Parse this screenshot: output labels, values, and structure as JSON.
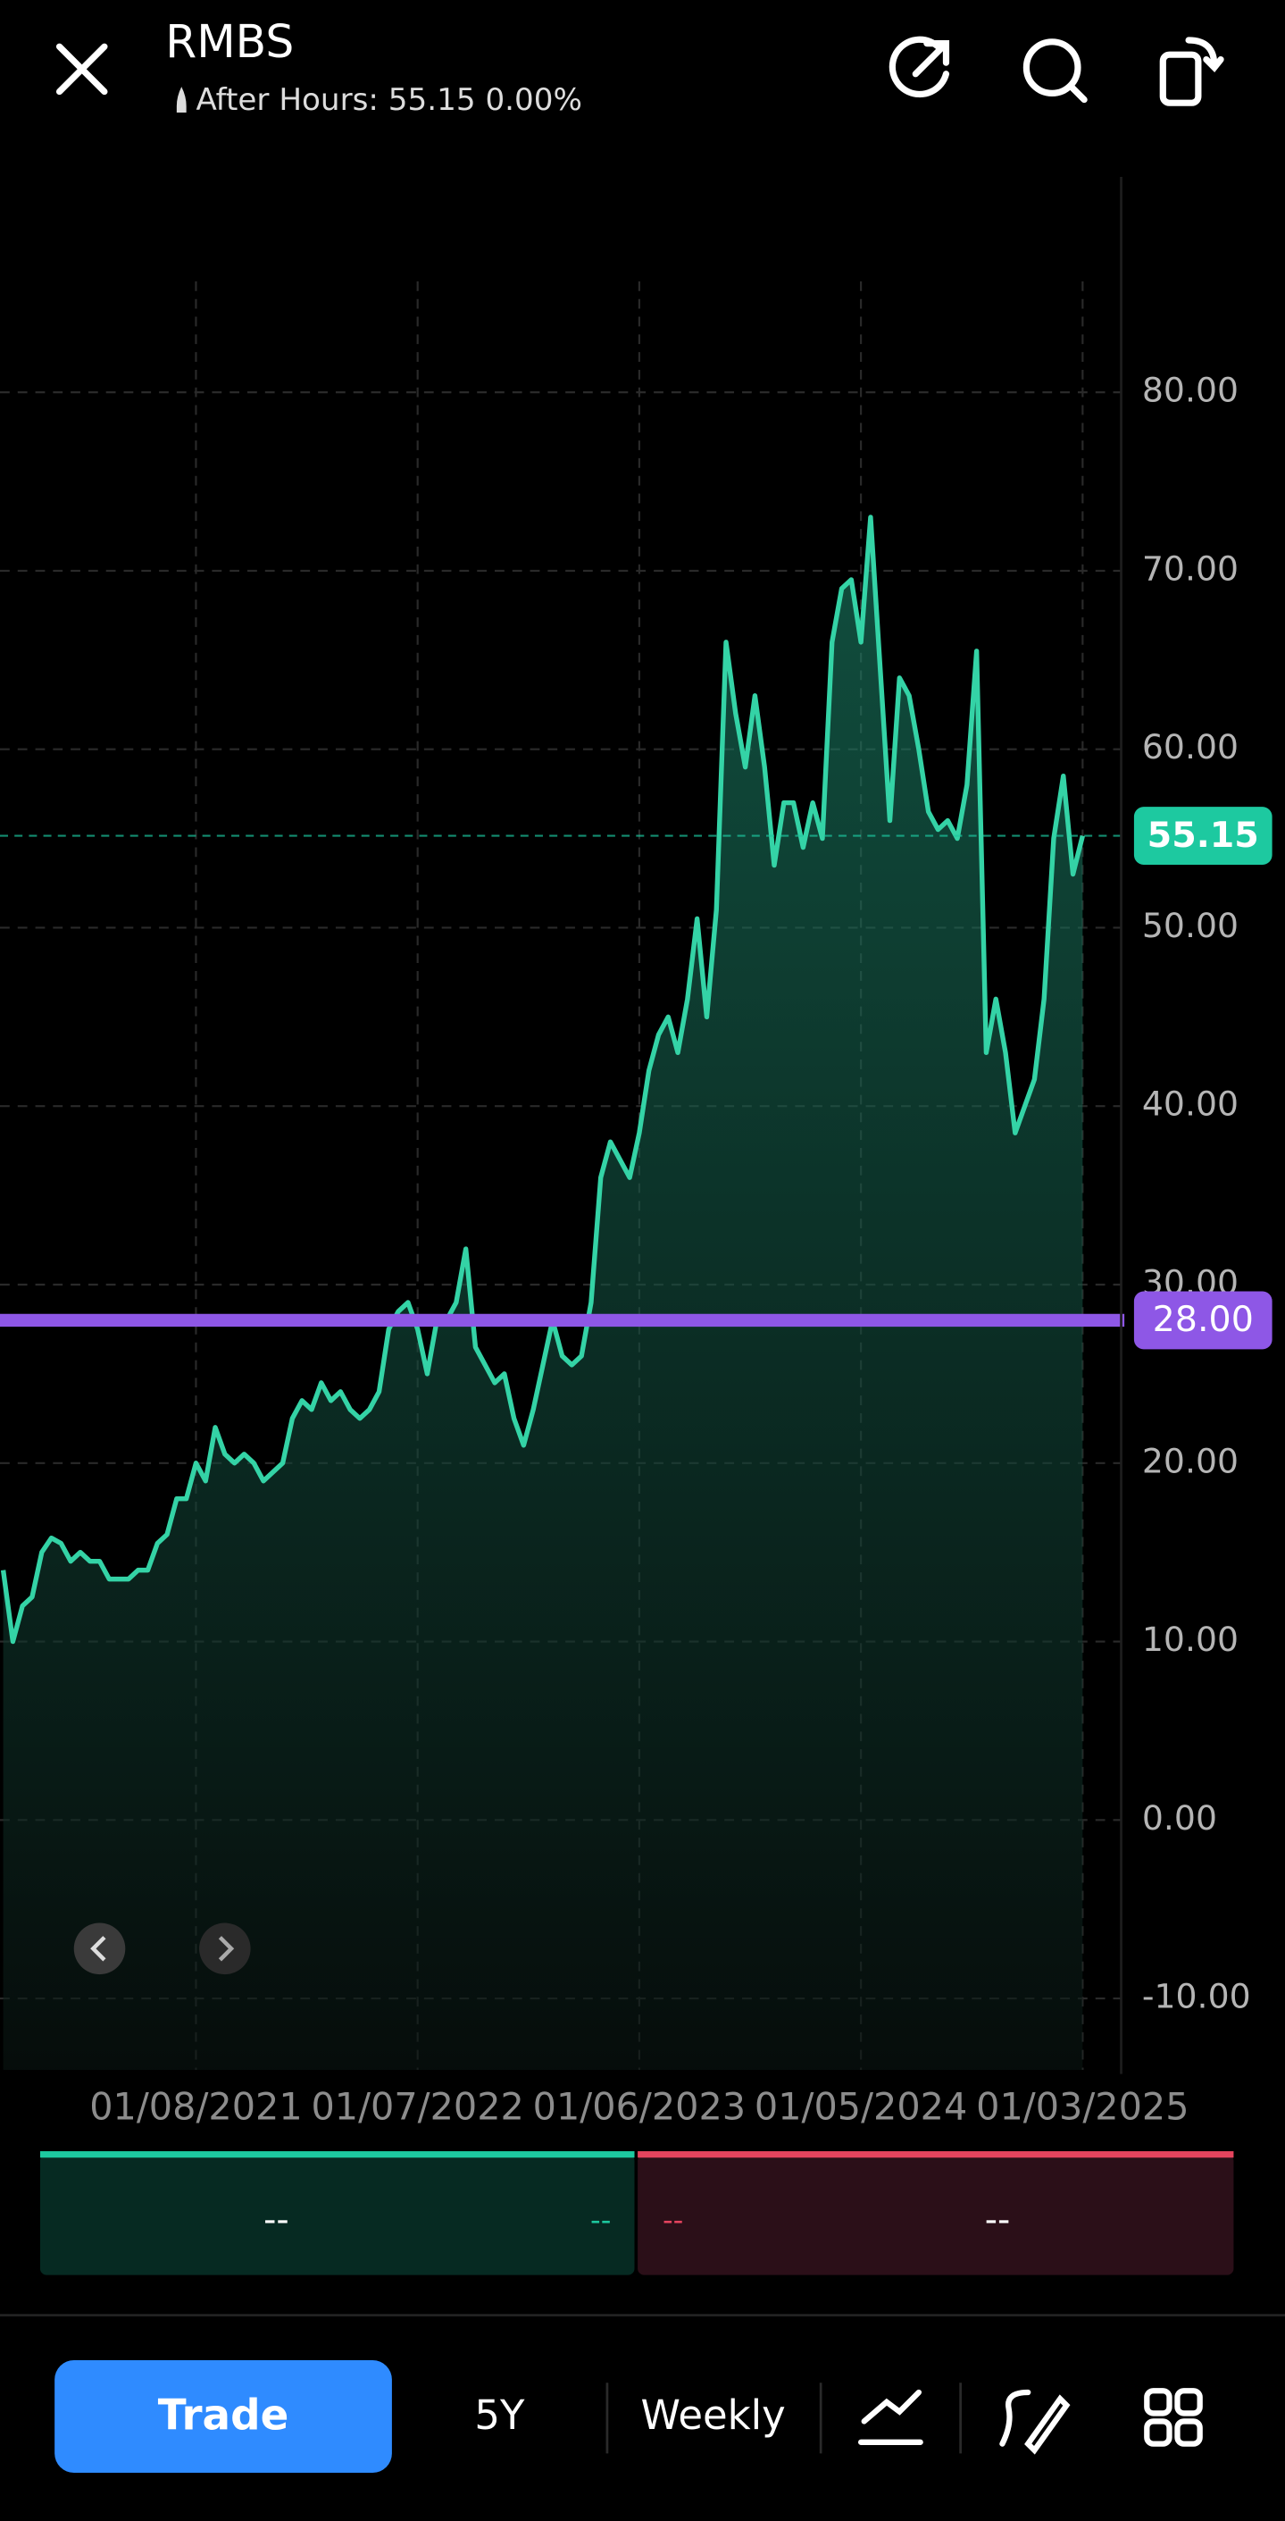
{
  "header": {
    "title": "RMBS",
    "subtitle": "After Hours: 55.15 0.00%"
  },
  "chart_data": {
    "type": "line",
    "values": [
      14,
      10,
      12,
      12.5,
      15,
      15.8,
      15.5,
      14.5,
      15,
      14.5,
      14.5,
      13.5,
      13.5,
      13.5,
      14,
      14,
      15.5,
      16,
      18,
      18,
      20,
      19,
      22,
      20.5,
      20,
      20.5,
      20,
      19,
      19.5,
      20,
      22.5,
      23.5,
      23,
      24.5,
      23.5,
      24,
      23,
      22.5,
      23,
      24,
      27.5,
      28.5,
      29,
      27.5,
      25,
      28,
      28,
      29,
      32,
      26.5,
      25.5,
      24.5,
      25,
      22.5,
      21,
      23,
      25.5,
      28,
      26,
      25.5,
      26,
      29,
      36,
      38,
      37,
      36,
      38.5,
      42,
      44,
      45,
      43,
      46,
      50.5,
      45,
      51,
      66,
      62,
      59,
      63,
      59,
      53.5,
      57,
      57,
      54.5,
      57,
      55,
      66,
      69,
      69.5,
      66,
      73,
      64.5,
      56,
      64,
      63,
      60,
      56.5,
      55.5,
      56,
      55,
      58,
      65.5,
      43,
      46,
      43,
      38.5,
      40,
      41.5,
      46,
      55,
      58.5,
      53,
      55.15
    ],
    "color": "#34d3a6",
    "xlim": [
      0,
      116
    ],
    "xticks": [
      {
        "value": 20,
        "label": "01/08/2021"
      },
      {
        "value": 43,
        "label": "01/07/2022"
      },
      {
        "value": 66,
        "label": "01/06/2023"
      },
      {
        "value": 89,
        "label": "01/05/2024"
      },
      {
        "value": 112,
        "label": "01/03/2025"
      }
    ],
    "ylim": [
      -14,
      92
    ],
    "yticks": [
      {
        "value": -10,
        "label": "-10.00"
      },
      {
        "value": 0,
        "label": "0.00"
      },
      {
        "value": 10,
        "label": "10.00"
      },
      {
        "value": 20,
        "label": "20.00"
      },
      {
        "value": 30,
        "label": "30.00"
      },
      {
        "value": 40,
        "label": "40.00"
      },
      {
        "value": 50,
        "label": "50.00"
      },
      {
        "value": 60,
        "label": "60.00"
      },
      {
        "value": 70,
        "label": "70.00"
      },
      {
        "value": 80,
        "label": "80.00"
      }
    ],
    "grid": true,
    "price_line": {
      "value": 55.15,
      "label": "55.15",
      "color": "#1dc9a0"
    },
    "alert_line": {
      "value": 28,
      "label": "28.00",
      "color": "#8e57e6"
    }
  },
  "order_panel": {
    "buy": {
      "label": "--",
      "change": "--"
    },
    "sell": {
      "change": "--",
      "label": "--"
    }
  },
  "toolbar": {
    "trade": "Trade",
    "range": "5Y",
    "interval": "Weekly"
  }
}
